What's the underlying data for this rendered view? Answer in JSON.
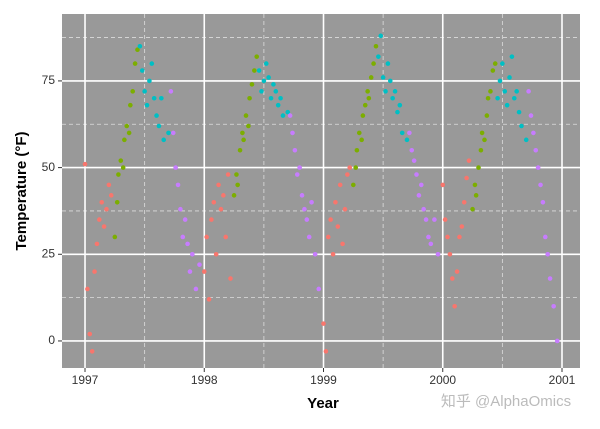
{
  "chart_data": {
    "type": "scatter",
    "xlabel": "Year",
    "ylabel": "Temperature (°F)",
    "watermark": "知乎 @AlphaOmics",
    "xlim": [
      1996.807,
      2001.151
    ],
    "ylim": [
      -7.8,
      94.3
    ],
    "xticks": [
      1997,
      1998,
      1999,
      2000,
      2001
    ],
    "yticks": [
      0,
      25,
      50,
      75
    ],
    "minor_xticks": [
      1997.5,
      1998.5,
      1999.5,
      2000.5
    ],
    "minor_yticks": [
      12.5,
      37.5,
      62.5,
      87.5
    ],
    "grid": true,
    "series": [
      {
        "color": "#f8766d",
        "x": [
          1997.0,
          1997.02,
          1997.04,
          1997.06,
          1997.08,
          1997.1,
          1997.12,
          1997.14,
          1997.16,
          1997.18,
          1997.2,
          1997.22,
          1998.0,
          1998.02,
          1998.04,
          1998.06,
          1998.08,
          1998.1,
          1998.12,
          1998.14,
          1998.16,
          1998.18,
          1998.2,
          1998.22,
          1999.0,
          1999.02,
          1999.04,
          1999.06,
          1999.08,
          1999.1,
          1999.12,
          1999.14,
          1999.16,
          1999.18,
          1999.2,
          1999.22,
          2000.0,
          2000.02,
          2000.04,
          2000.06,
          2000.08,
          2000.1,
          2000.12,
          2000.14,
          2000.16,
          2000.18,
          2000.2,
          2000.22
        ],
        "values": [
          51,
          15,
          2,
          -3,
          20,
          28,
          35,
          40,
          33,
          38,
          45,
          42,
          20,
          30,
          12,
          35,
          40,
          25,
          45,
          38,
          42,
          30,
          48,
          18,
          5,
          -3,
          30,
          35,
          25,
          40,
          33,
          45,
          28,
          38,
          48,
          50,
          45,
          35,
          30,
          25,
          18,
          10,
          20,
          30,
          33,
          40,
          47,
          52
        ]
      },
      {
        "color": "#7cae00",
        "x": [
          1997.25,
          1997.27,
          1997.28,
          1997.3,
          1997.32,
          1997.33,
          1997.35,
          1997.37,
          1997.38,
          1997.4,
          1997.42,
          1997.44,
          1998.25,
          1998.27,
          1998.28,
          1998.3,
          1998.32,
          1998.33,
          1998.35,
          1998.37,
          1998.38,
          1998.4,
          1998.42,
          1998.44,
          1999.25,
          1999.27,
          1999.28,
          1999.3,
          1999.32,
          1999.33,
          1999.35,
          1999.37,
          1999.38,
          1999.4,
          1999.42,
          1999.44,
          2000.25,
          2000.27,
          2000.28,
          2000.3,
          2000.32,
          2000.33,
          2000.35,
          2000.37,
          2000.38,
          2000.4,
          2000.42,
          2000.44
        ],
        "values": [
          30,
          40,
          48,
          52,
          50,
          58,
          62,
          60,
          68,
          72,
          80,
          84,
          42,
          48,
          45,
          55,
          60,
          58,
          65,
          62,
          70,
          74,
          78,
          82,
          45,
          50,
          55,
          60,
          58,
          65,
          68,
          72,
          70,
          76,
          80,
          85,
          38,
          45,
          42,
          50,
          55,
          60,
          58,
          65,
          70,
          72,
          78,
          80
        ]
      },
      {
        "color": "#00bfc4",
        "x": [
          1997.46,
          1997.48,
          1997.5,
          1997.52,
          1997.54,
          1997.56,
          1997.58,
          1997.6,
          1997.62,
          1997.64,
          1997.66,
          1997.7,
          1998.46,
          1998.48,
          1998.5,
          1998.52,
          1998.54,
          1998.56,
          1998.58,
          1998.6,
          1998.62,
          1998.64,
          1998.66,
          1998.7,
          1999.46,
          1999.48,
          1999.5,
          1999.52,
          1999.54,
          1999.56,
          1999.58,
          1999.6,
          1999.62,
          1999.64,
          1999.66,
          1999.7,
          2000.46,
          2000.48,
          2000.5,
          2000.52,
          2000.54,
          2000.56,
          2000.58,
          2000.6,
          2000.62,
          2000.64,
          2000.66,
          2000.7
        ],
        "values": [
          85,
          78,
          72,
          68,
          75,
          80,
          70,
          65,
          62,
          70,
          58,
          60,
          78,
          72,
          75,
          80,
          76,
          70,
          74,
          72,
          68,
          70,
          65,
          66,
          82,
          88,
          76,
          72,
          80,
          75,
          70,
          72,
          66,
          68,
          60,
          58,
          70,
          75,
          80,
          72,
          68,
          76,
          82,
          70,
          72,
          66,
          62,
          58
        ]
      },
      {
        "color": "#c77cff",
        "x": [
          1997.72,
          1997.74,
          1997.76,
          1997.78,
          1997.8,
          1997.82,
          1997.84,
          1997.86,
          1997.88,
          1997.9,
          1997.93,
          1997.96,
          1998.72,
          1998.74,
          1998.76,
          1998.78,
          1998.8,
          1998.82,
          1998.84,
          1998.86,
          1998.88,
          1998.9,
          1998.93,
          1998.96,
          1999.72,
          1999.74,
          1999.76,
          1999.78,
          1999.8,
          1999.82,
          1999.84,
          1999.86,
          1999.88,
          1999.9,
          1999.93,
          1999.96,
          2000.72,
          2000.74,
          2000.76,
          2000.78,
          2000.8,
          2000.82,
          2000.84,
          2000.86,
          2000.88,
          2000.9,
          2000.93,
          2000.96
        ],
        "values": [
          72,
          60,
          50,
          45,
          38,
          30,
          35,
          28,
          20,
          25,
          15,
          22,
          65,
          60,
          55,
          48,
          50,
          42,
          38,
          35,
          30,
          40,
          25,
          15,
          60,
          55,
          52,
          48,
          42,
          45,
          38,
          35,
          30,
          28,
          35,
          25,
          72,
          65,
          60,
          55,
          50,
          45,
          40,
          30,
          25,
          18,
          10,
          0
        ]
      }
    ]
  }
}
